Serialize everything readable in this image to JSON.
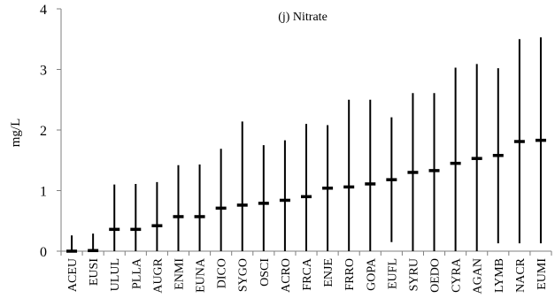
{
  "chart_data": {
    "type": "range",
    "title": "(j) Nitrate",
    "ylabel": "mg/L",
    "xlabel": "",
    "ylim": [
      0,
      4
    ],
    "yticks": [
      "0",
      "1",
      "2",
      "3",
      "4"
    ],
    "grid": false,
    "categories": [
      "ACEU",
      "EUSI",
      "ULUL",
      "PLLA",
      "AUGR",
      "ENMI",
      "EUNA",
      "DICO",
      "SYGO",
      "OSCI",
      "ACRO",
      "FRCA",
      "ENJE",
      "FRRO",
      "GOPA",
      "EUFL",
      "SYRU",
      "OEDO",
      "CYRA",
      "AGAN",
      "LYMB",
      "NACR",
      "EUMI"
    ],
    "series": [
      {
        "mean": [
          0.0,
          0.01,
          0.36,
          0.36,
          0.42,
          0.57,
          0.57,
          0.71,
          0.76,
          0.79,
          0.84,
          0.9,
          1.04,
          1.06,
          1.11,
          1.18,
          1.3,
          1.33,
          1.45,
          1.53,
          1.58,
          1.81,
          1.83
        ],
        "min": [
          0.0,
          0.0,
          0.0,
          0.0,
          0.0,
          0.0,
          0.0,
          0.0,
          0.0,
          0.0,
          0.0,
          0.0,
          0.0,
          0.0,
          0.0,
          0.15,
          0.0,
          0.0,
          0.0,
          0.0,
          0.13,
          0.13,
          0.13
        ],
        "max": [
          0.26,
          0.29,
          1.1,
          1.11,
          1.14,
          1.42,
          1.43,
          1.69,
          2.14,
          1.75,
          1.83,
          2.1,
          2.08,
          2.5,
          2.5,
          2.21,
          2.61,
          2.61,
          3.03,
          3.09,
          3.02,
          3.5,
          3.53
        ]
      }
    ],
    "colors": {
      "range": "#000000",
      "mean": "#000000",
      "axis": "#7f7f7f"
    }
  }
}
